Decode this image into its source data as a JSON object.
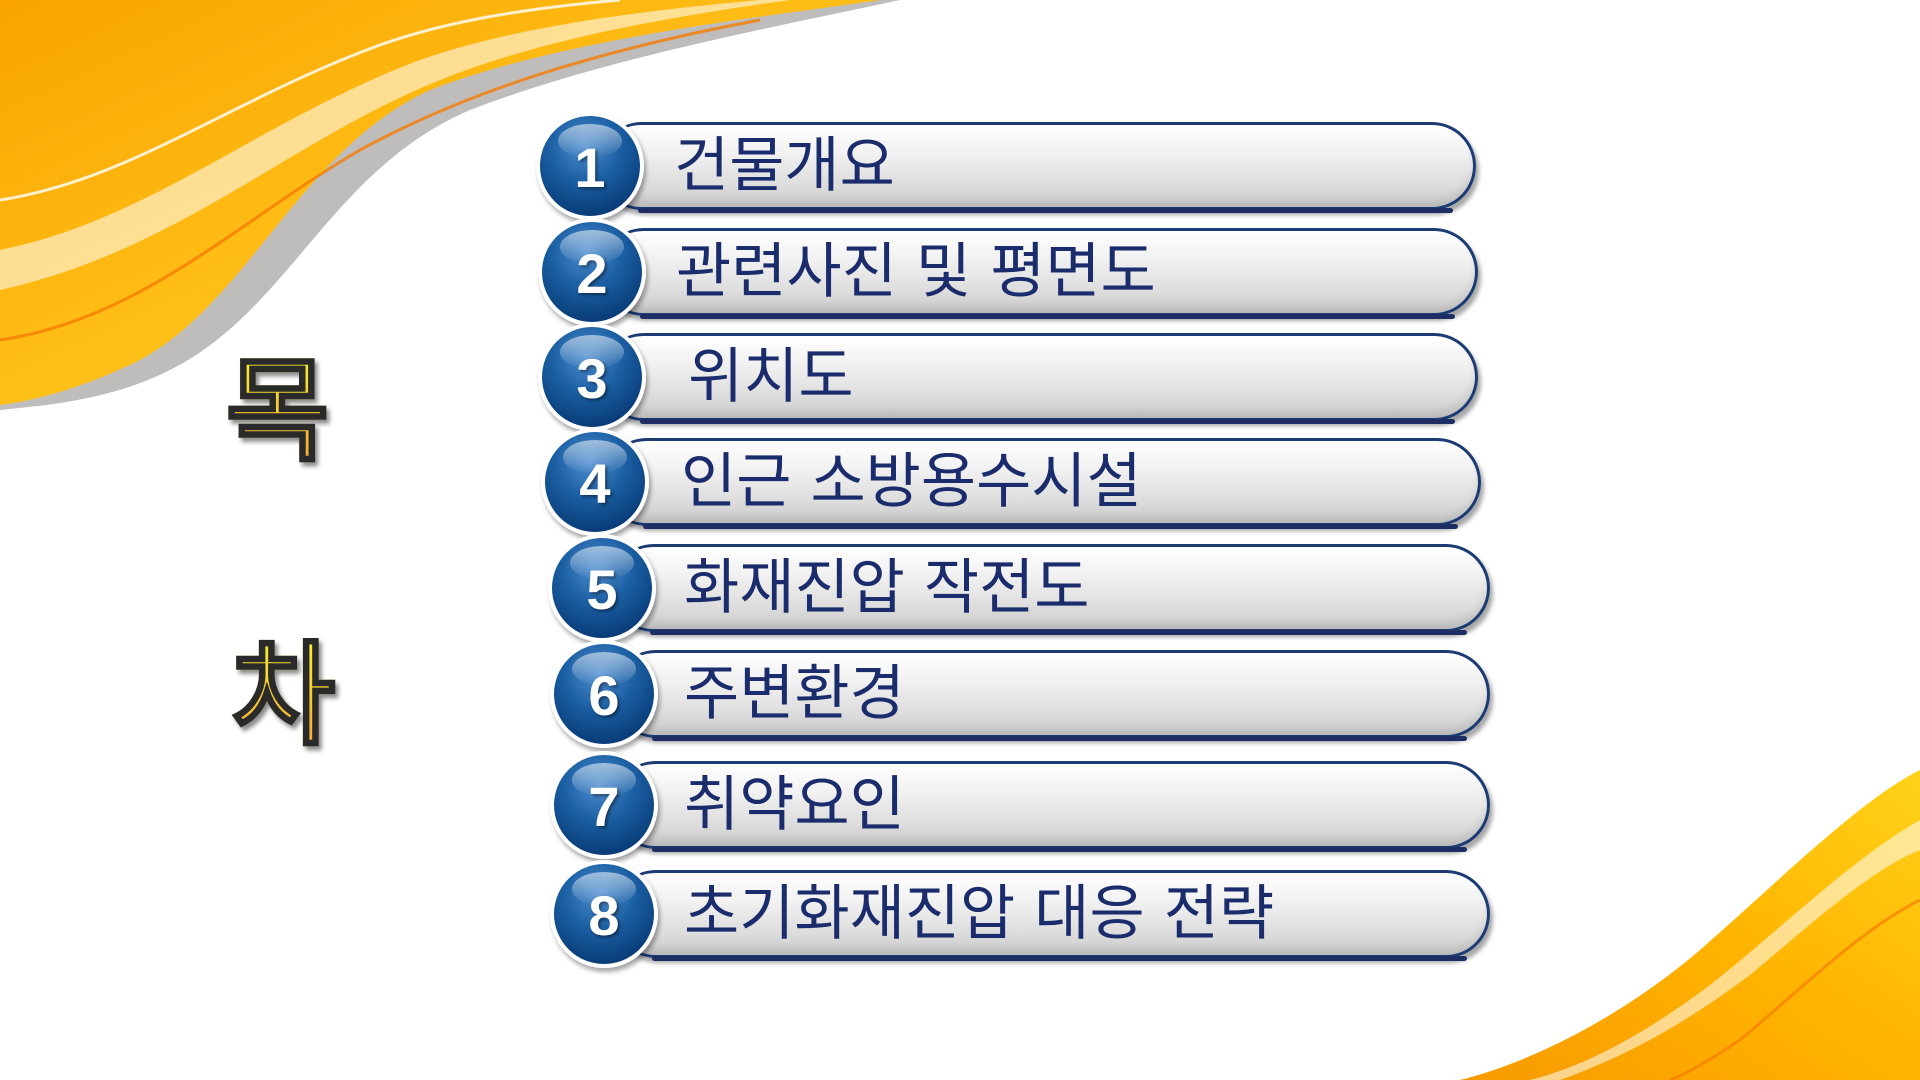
{
  "slide": {
    "title_char_1": "목",
    "title_char_2": "차"
  },
  "toc_items": [
    {
      "number": "1",
      "label": "건물개요"
    },
    {
      "number": "2",
      "label": "관련사진 및 평면도"
    },
    {
      "number": "3",
      "label": "위치도"
    },
    {
      "number": "4",
      "label": "인근 소방용수시설"
    },
    {
      "number": "5",
      "label": "화재진압 작전도"
    },
    {
      "number": "6",
      "label": "주변환경"
    },
    {
      "number": "7",
      "label": "취약요인"
    },
    {
      "number": "8",
      "label": "초기화재진압 대응 전략"
    }
  ],
  "colors": {
    "accent_orange": "#f7a400",
    "accent_yellow": "#ffd21a",
    "number_circle": "#0a3f7c",
    "label_text": "#1a2c6b",
    "title_fill": "#f6ee2a"
  }
}
